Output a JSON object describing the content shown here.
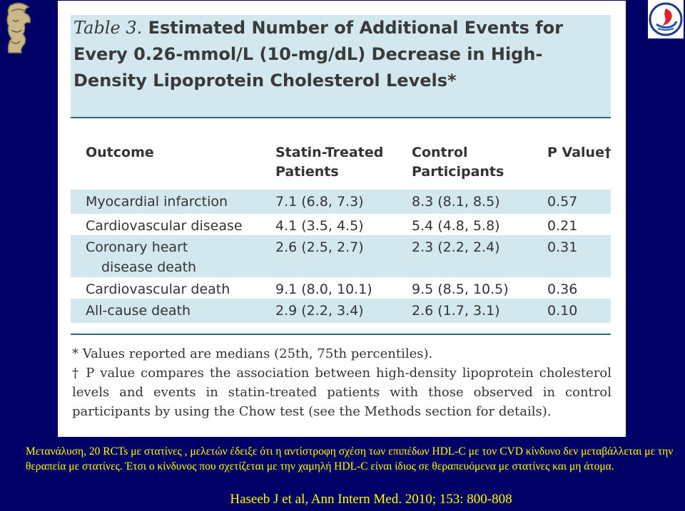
{
  "table": {
    "label": "Table 3.",
    "title": "Estimated Number of Additional Events for Every 0.26-mmol/L (10-mg/dL) Decrease in High-Density Lipoprotein Cholesterol Levels*",
    "headers": {
      "outcome": "Outcome",
      "statin_line1": "Statin-Treated",
      "statin_line2": "Patients",
      "control_line1": "Control",
      "control_line2": "Participants",
      "p_value": "P Value†"
    },
    "rows": [
      {
        "outcome": "Myocardial infarction",
        "outcome_cont": "",
        "statin": "7.1 (6.8, 7.3)",
        "control": "8.3 (8.1, 8.5)",
        "p": "0.57"
      },
      {
        "outcome": "Cardiovascular disease",
        "outcome_cont": "",
        "statin": "4.1 (3.5, 4.5)",
        "control": "5.4 (4.8, 5.8)",
        "p": "0.21"
      },
      {
        "outcome": "Coronary heart",
        "outcome_cont": "disease death",
        "statin": "2.6 (2.5, 2.7)",
        "control": "2.3 (2.2, 2.4)",
        "p": "0.31"
      },
      {
        "outcome": "Cardiovascular death",
        "outcome_cont": "",
        "statin": "9.1 (8.0, 10.1)",
        "control": "9.5 (8.5, 10.5)",
        "p": "0.36"
      },
      {
        "outcome": "All-cause death",
        "outcome_cont": "",
        "statin": "2.9 (2.2, 3.4)",
        "control": "2.6 (1.7, 3.1)",
        "p": "0.10"
      }
    ],
    "footnotes": [
      "* Values reported are medians (25th, 75th percentiles).",
      "† P value compares the association between high-density lipoprotein cholesterol levels and events in statin-treated patients with those observed in control participants by using the Chow test (see the Methods section for details)."
    ]
  },
  "caption": "Μετανάλυση, 20 RCTs με στατίνες , μελετών έδειξε ότι η αντίστροφη σχέση των επιπέδων HDL-C με τον CVD κίνδυνο δεν μεταβάλλεται με την θεραπεία με στατίνες. Έτσι ο κίνδυνος που σχετίζεται με την χαμηλή HDL-C είναι ίδιος σε θεραπευόμενα με στατίνες και μη άτομα.",
  "citation": "Haseeb J et al, Ann Intern Med. 2010; 153: 800-808",
  "colors": {
    "background": "#000066",
    "caption_text": "#ffff00",
    "table_shade": "#d2e8ee",
    "table_text": "#333333"
  }
}
